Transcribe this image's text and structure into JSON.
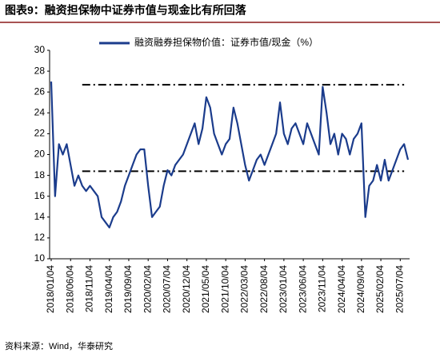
{
  "chart_data": {
    "type": "line",
    "title": "图表9：融资担保物中证券市值与现金比有所回落",
    "source": "资料来源：Wind，华泰研究",
    "categories": [
      "2018/01/04",
      null,
      null,
      null,
      null,
      "2018/06/04",
      null,
      null,
      null,
      null,
      "2018/11/04",
      null,
      null,
      null,
      null,
      "2019/04/04",
      null,
      null,
      null,
      null,
      "2019/09/04",
      null,
      null,
      null,
      null,
      "2020/02/04",
      null,
      null,
      null,
      null,
      "2020/07/04",
      null,
      null,
      null,
      null,
      "2020/12/04",
      null,
      null,
      null,
      null,
      "2021/05/04",
      null,
      null,
      null,
      null,
      "2021/10/04",
      null,
      null,
      null,
      null,
      "2022/03/04",
      null,
      null,
      null,
      null,
      "2022/08/04",
      null,
      null,
      null,
      null,
      "2023/01/04",
      null,
      null,
      null,
      null,
      "2023/06/04",
      null,
      null,
      null,
      null,
      "2023/11/04",
      null,
      null,
      null,
      null,
      "2024/04/04",
      null,
      null,
      null,
      null,
      "2024/09/04",
      null,
      null,
      null,
      null,
      "2025/02/04",
      null,
      null,
      null,
      null,
      "2025/07/04",
      null,
      null
    ],
    "series": [
      {
        "name": "融资融券担保物价值：证券市值/现金（%）",
        "color": "#1b3c8c",
        "values": [
          27,
          16,
          21,
          20,
          21,
          19,
          17,
          18,
          17,
          16.5,
          17,
          16.5,
          16,
          14,
          13.5,
          13,
          14,
          14.5,
          15.5,
          17,
          18,
          19,
          20,
          20.5,
          20.5,
          17,
          14,
          14.5,
          15,
          17,
          18.5,
          18,
          19,
          19.5,
          20,
          21,
          22,
          23,
          21,
          22.5,
          25.5,
          24.5,
          22,
          21,
          20,
          21,
          21.5,
          24.5,
          23,
          21,
          19,
          17.5,
          18.5,
          19.5,
          20,
          19,
          20,
          21,
          22,
          25,
          22,
          21,
          22.5,
          23,
          22,
          21,
          23,
          22,
          21,
          20,
          26.5,
          24,
          21,
          22,
          20,
          22,
          21.5,
          20,
          21.5,
          22,
          23,
          14,
          17,
          17.5,
          19,
          17.5,
          19.5,
          17.5,
          18.5,
          19.5,
          20.5,
          21,
          19.5
        ]
      }
    ],
    "reference_lines": [
      26.7,
      18.4
    ],
    "ylim": [
      10,
      30
    ],
    "yticks": [
      10,
      12,
      14,
      16,
      18,
      20,
      22,
      24,
      26,
      28,
      30
    ]
  }
}
